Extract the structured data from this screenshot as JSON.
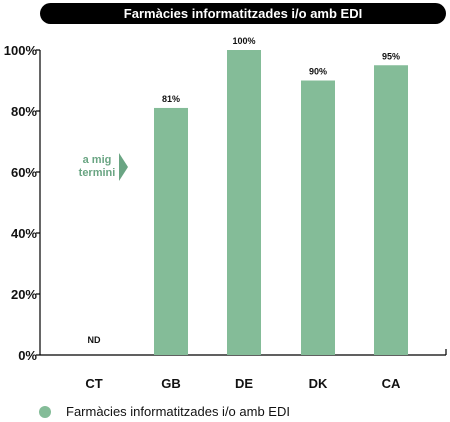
{
  "chart_data": {
    "type": "bar",
    "title": "Farmàcies informatitzades i/o amb EDI",
    "categories": [
      "CT",
      "GB",
      "DE",
      "DK",
      "CA"
    ],
    "series": [
      {
        "name": "Farmàcies informatitzades i/o amb EDI",
        "values": [
          null,
          81,
          100,
          90,
          95
        ],
        "data_labels": [
          "ND",
          "81%",
          "100%",
          "90%",
          "95%"
        ],
        "color": "#84bc98"
      }
    ],
    "yticks": [
      "0%",
      "20%",
      "40%",
      "60%",
      "80%",
      "100%"
    ],
    "ylim": [
      0,
      100
    ],
    "grid": false,
    "legend_position": "bottom-left",
    "annotation": {
      "lines": [
        "a mig",
        "termini"
      ],
      "y_value": 62.5,
      "color": "#6aa583"
    },
    "title_bar_color": "#000000"
  }
}
